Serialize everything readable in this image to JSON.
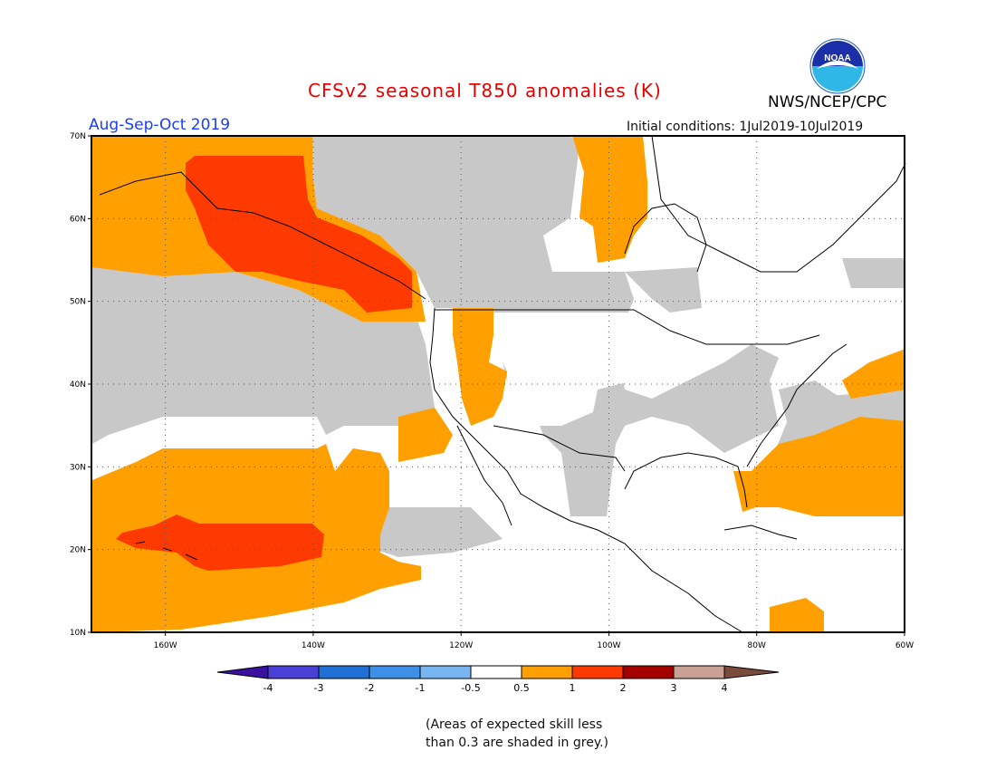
{
  "header": {
    "title": "CFSv2 seasonal T850 anomalies (K)",
    "period": "Aug-Sep-Oct 2019",
    "initial_conditions": "Initial conditions: 1Jul2019-10Jul2019",
    "agency": "NWS/NCEP/CPC",
    "logo_text": "NOAA"
  },
  "map": {
    "lat_labels": [
      "70N",
      "60N",
      "50N",
      "40N",
      "30N",
      "20N",
      "10N"
    ],
    "lon_labels": [
      "160W",
      "140W",
      "120W",
      "100W",
      "80W",
      "60W"
    ],
    "lon_range": [
      -170,
      -60
    ],
    "lat_range": [
      10,
      70
    ],
    "colors": {
      "skill_grey": "#c8c8c8",
      "anom_0_5_1": "#ff9f00",
      "anom_1_2": "#ff3a00",
      "anom_neg_1_neg_0_5": "#77b6f0",
      "coast": "#000000"
    }
  },
  "colorbar": {
    "labels": [
      "-4",
      "-3",
      "-2",
      "-1",
      "-0.5",
      "0.5",
      "1",
      "2",
      "3",
      "4"
    ],
    "colors": [
      "#3b0fa0",
      "#4a3fd6",
      "#1f6fd4",
      "#3e8fe8",
      "#77b6f0",
      "#ffffff",
      "#ff9f00",
      "#ff3a00",
      "#a50000",
      "#c8a094",
      "#7a4a3a"
    ]
  },
  "footnote": {
    "line1": "(Areas of expected skill less",
    "line2": "than 0.3 are shaded in grey.)"
  }
}
